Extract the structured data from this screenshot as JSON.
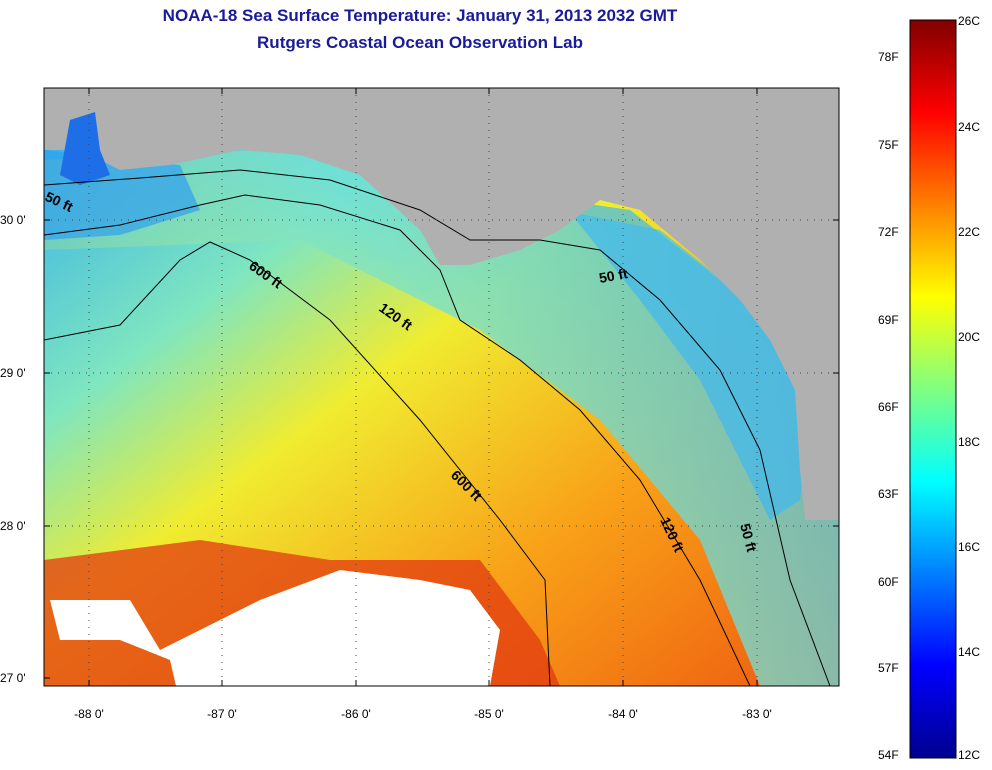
{
  "title": "NOAA-18 Sea Surface Temperature:  January 31, 2013 2032 GMT",
  "subtitle": "Rutgers Coastal Ocean Observation Lab",
  "map": {
    "lat_labels": [
      "30 0'",
      "29 0'",
      "28 0'",
      "27 0'"
    ],
    "lon_labels": [
      "-88 0'",
      "-87 0'",
      "-86 0'",
      "-85 0'",
      "-84 0'",
      "-83 0'"
    ],
    "contour_labels": [
      "50 ft",
      "600 ft",
      "120 ft",
      "50 ft",
      "600 ft",
      "120 ft",
      "50 ft"
    ]
  },
  "colorbar": {
    "fahrenheit_labels": [
      "78F",
      "75F",
      "72F",
      "69F",
      "66F",
      "63F",
      "60F",
      "57F",
      "54F"
    ],
    "celsius_labels": [
      "26C",
      "24C",
      "22C",
      "20C",
      "18C",
      "16C",
      "14C",
      "12C"
    ]
  },
  "colors": {
    "title": "#1a1a9a",
    "land": "#b0b0b0",
    "cloud": "#ffffff"
  }
}
